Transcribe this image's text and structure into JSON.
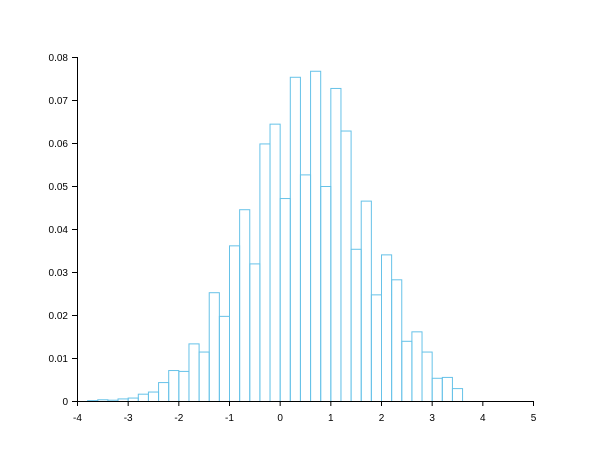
{
  "chart_data": {
    "type": "bar",
    "title": "",
    "xlabel": "",
    "ylabel": "",
    "xlim": [
      -4,
      5
    ],
    "ylim": [
      0,
      0.08
    ],
    "grid": false,
    "bar_color": "#66c2e8",
    "x_ticks": [
      "-4",
      "-3",
      "-2",
      "-1",
      "0",
      "1",
      "2",
      "3",
      "4",
      "5"
    ],
    "y_ticks": [
      "0",
      "0.01",
      "0.02",
      "0.03",
      "0.04",
      "0.05",
      "0.06",
      "0.07",
      "0.08"
    ],
    "bin_width": 0.2,
    "bin_starts": [
      -3.8,
      -3.6,
      -3.4,
      -3.2,
      -3.0,
      -2.8,
      -2.6,
      -2.4,
      -2.2,
      -2.0,
      -1.8,
      -1.6,
      -1.4,
      -1.2,
      -1.0,
      -0.8,
      -0.6,
      -0.4,
      -0.2,
      0.0,
      0.2,
      0.4,
      0.6,
      0.8,
      1.0,
      1.2,
      1.4,
      1.6,
      1.8,
      2.0,
      2.2,
      2.4,
      2.6,
      2.8,
      3.0,
      3.2,
      3.4
    ],
    "values": [
      0.0002,
      0.0004,
      0.0003,
      0.0006,
      0.0008,
      0.0017,
      0.0022,
      0.0044,
      0.0072,
      0.007,
      0.0134,
      0.0115,
      0.0253,
      0.0198,
      0.0362,
      0.0446,
      0.032,
      0.0599,
      0.0645,
      0.0472,
      0.0754,
      0.0527,
      0.0768,
      0.05,
      0.0728,
      0.0629,
      0.0354,
      0.0466,
      0.0248,
      0.0341,
      0.0283,
      0.014,
      0.0162,
      0.0115,
      0.0054,
      0.0056,
      0.003
    ]
  }
}
